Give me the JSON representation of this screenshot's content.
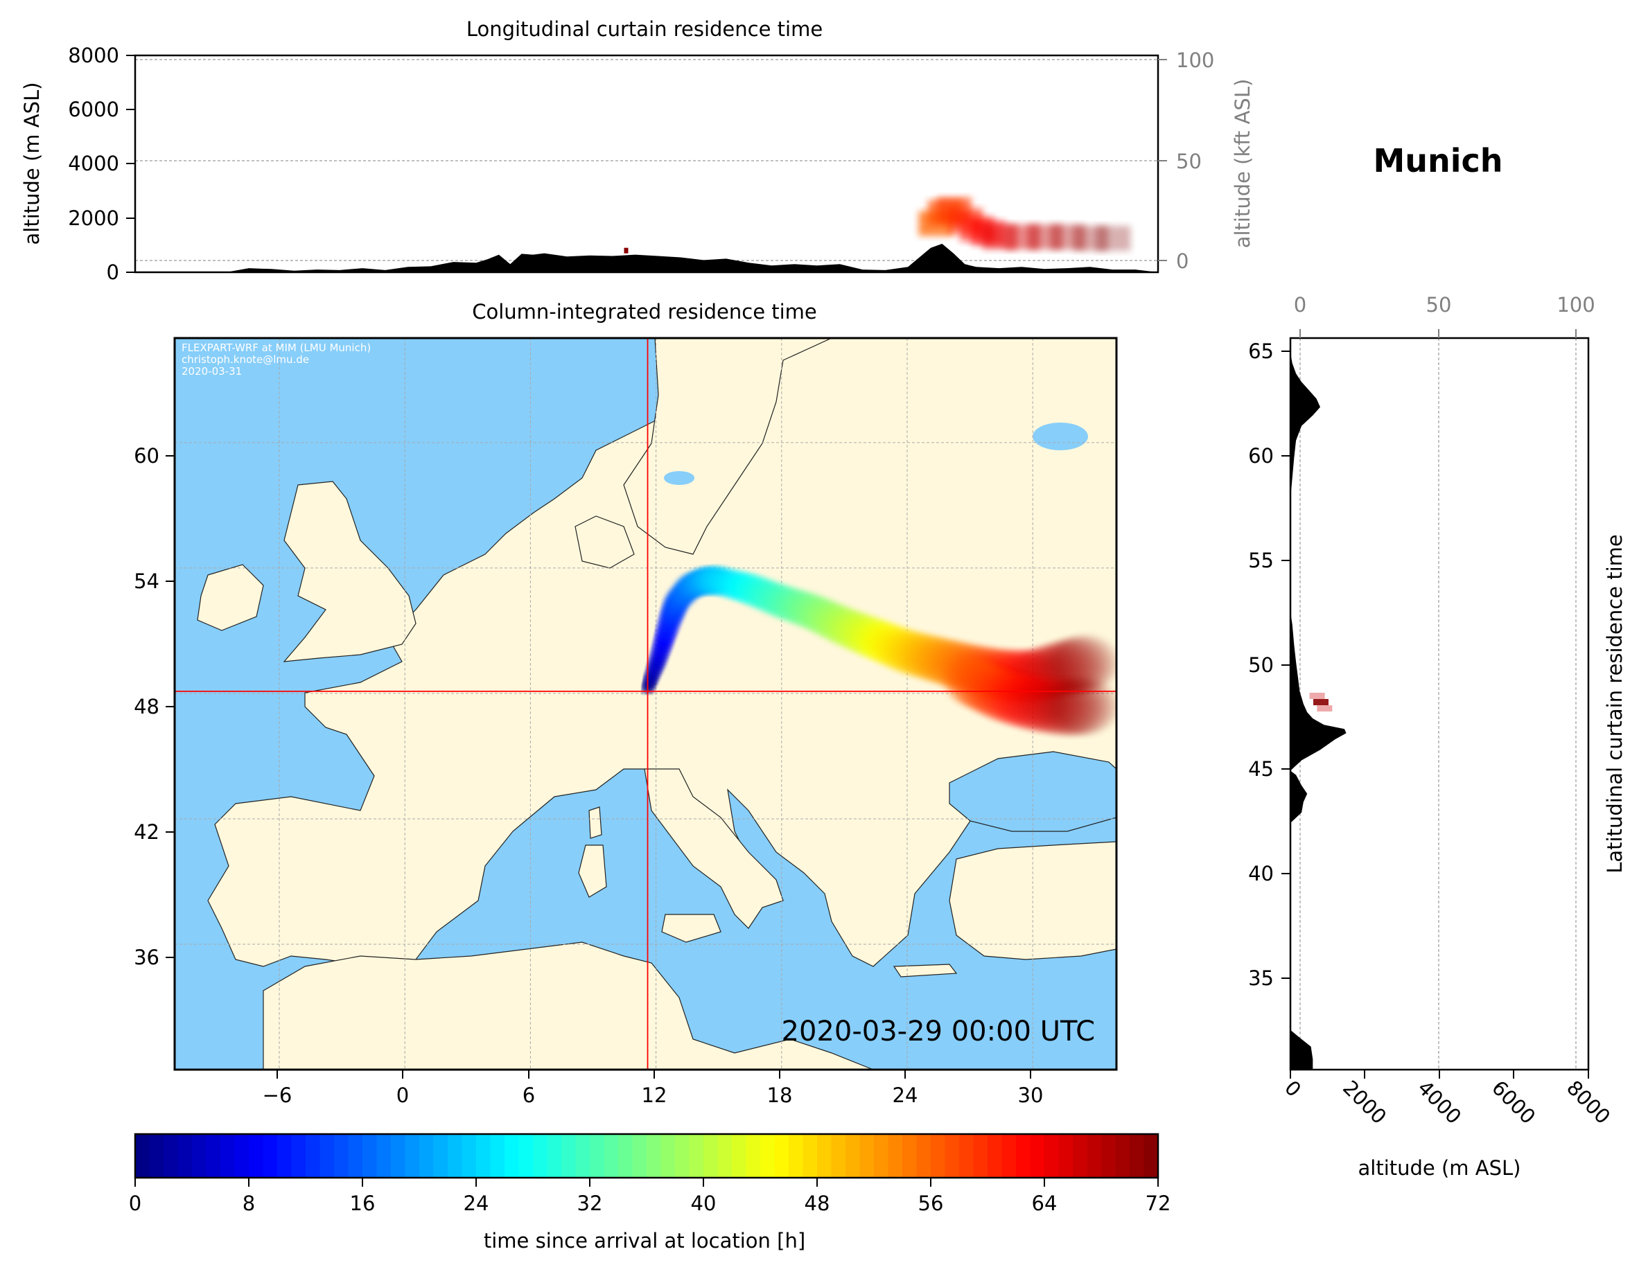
{
  "chart_data": [
    {
      "type": "area",
      "title": "Longitudinal curtain residence time",
      "ylabel": "altitude (m ASL)",
      "ylabel_right": "altitude (kft ASL)",
      "ylim": [
        0,
        8000
      ],
      "yticks": [
        "0",
        "2000",
        "4000",
        "6000",
        "8000"
      ],
      "yticks_right": [
        "0",
        "50",
        "100"
      ],
      "xlim": [
        -10,
        35
      ],
      "terrain_profile": {
        "x": [
          -10,
          -6,
          -5,
          -4,
          -3,
          -2,
          -1,
          0,
          1,
          2,
          3,
          4,
          5,
          5.5,
          6,
          6.5,
          7,
          7.5,
          8,
          9,
          10,
          11,
          12,
          13,
          14,
          15,
          16,
          17,
          18,
          19,
          20,
          21,
          22,
          23,
          24,
          24.5,
          25,
          25.5,
          26,
          26.5,
          27,
          28,
          29,
          30,
          31,
          32,
          33,
          34,
          35
        ],
        "y": [
          0,
          0,
          150,
          120,
          60,
          100,
          80,
          150,
          80,
          200,
          220,
          380,
          350,
          480,
          650,
          300,
          680,
          650,
          700,
          580,
          620,
          600,
          650,
          600,
          550,
          450,
          500,
          350,
          250,
          300,
          250,
          300,
          100,
          80,
          200,
          550,
          900,
          1050,
          700,
          300,
          200,
          150,
          200,
          120,
          150,
          200,
          100,
          100,
          0
        ]
      },
      "plume_altitude_m": {
        "x": [
          25.2,
          25.6,
          26,
          26.5,
          27,
          27.5,
          28,
          29,
          30,
          31,
          32,
          33
        ],
        "y": [
          1800,
          2200,
          2300,
          1900,
          1600,
          1450,
          1300,
          1300,
          1300,
          1300,
          1250,
          1250
        ]
      },
      "release_point": {
        "x": 11.6,
        "y": 800
      }
    },
    {
      "type": "heatmap",
      "title": "Column-integrated residence time",
      "credit_lines": [
        "FLEXPART-WRF at MIM (LMU Munich)",
        "christoph.knote@lmu.de",
        "2020-03-31"
      ],
      "timestamp": "2020-03-29 00:00 UTC",
      "xlim": [
        -11,
        34
      ],
      "ylim": [
        30,
        65
      ],
      "xticks": [
        "−6",
        "0",
        "6",
        "12",
        "18",
        "24",
        "30"
      ],
      "yticks": [
        "36",
        "42",
        "48",
        "54",
        "60"
      ],
      "location": {
        "name": "Munich",
        "lon": 11.6,
        "lat": 48.1
      },
      "trajectory": {
        "lon": [
          11.6,
          11.8,
          12.1,
          12.4,
          12.7,
          13.0,
          13.6,
          14.3,
          15.0,
          16.5,
          18.0,
          19.5,
          21.0,
          22.5,
          24.0,
          25.5,
          27.0,
          28.5,
          30.0,
          31.5,
          32.8
        ],
        "lat": [
          48.2,
          48.8,
          49.6,
          50.6,
          51.6,
          52.4,
          53.1,
          53.4,
          53.4,
          53.0,
          52.4,
          51.9,
          51.2,
          50.6,
          50.0,
          49.6,
          49.2,
          48.9,
          48.8,
          49.2,
          49.5
        ],
        "hours": [
          0,
          3,
          6,
          9,
          12,
          15,
          18,
          21,
          24,
          28,
          32,
          36,
          40,
          44,
          48,
          52,
          56,
          60,
          64,
          68,
          72
        ]
      },
      "trajectory_south_branch": {
        "lon": [
          27.0,
          28.5,
          30.0,
          31.5,
          32.8
        ],
        "lat": [
          48.6,
          47.9,
          47.5,
          47.3,
          47.4
        ],
        "hours": [
          56,
          60,
          64,
          68,
          72
        ]
      },
      "colors": {
        "ocean": "#87CEFA",
        "land": "#FFF8DC"
      }
    },
    {
      "type": "area",
      "title": "Latitudinal curtain residence time",
      "location_label": "Munich",
      "xlabel": "altitude (m ASL)",
      "xlim": [
        0,
        8000
      ],
      "xticks": [
        "0",
        "2000",
        "4000",
        "6000",
        "8000"
      ],
      "xticks_top": [
        "0",
        "50",
        "100"
      ],
      "ylim": [
        30.7,
        65.7
      ],
      "yticks": [
        "35",
        "40",
        "45",
        "50",
        "55",
        "60",
        "65"
      ],
      "terrain_profile": {
        "lat": [
          30.7,
          31.2,
          31.8,
          32.3,
          32.6,
          42.5,
          43.0,
          43.5,
          43.9,
          44.3,
          44.8,
          45.0,
          45.5,
          46.0,
          46.5,
          46.8,
          47.0,
          47.2,
          47.5,
          47.8,
          48.2,
          48.8,
          49.5,
          50.2,
          51.0,
          52.0,
          52.6,
          58.0,
          59.0,
          60.0,
          60.8,
          61.5,
          62.0,
          62.4,
          62.8,
          63.2,
          63.6,
          64.0,
          64.5,
          65.0,
          65.7
        ],
        "alt": [
          600,
          600,
          550,
          200,
          0,
          0,
          300,
          350,
          450,
          300,
          150,
          0,
          300,
          800,
          1200,
          1500,
          1450,
          900,
          600,
          450,
          350,
          250,
          200,
          150,
          100,
          50,
          0,
          0,
          50,
          100,
          150,
          300,
          600,
          800,
          700,
          500,
          300,
          150,
          50,
          0,
          0
        ]
      },
      "plume_points": [
        {
          "lat": 48.3,
          "alt": 800
        },
        {
          "lat": 48.6,
          "alt": 700
        },
        {
          "lat": 48.0,
          "alt": 900
        }
      ]
    },
    {
      "type": "colorbar",
      "label": "time since arrival at location [h]",
      "range": [
        0,
        72
      ],
      "ticks": [
        "0",
        "8",
        "16",
        "24",
        "32",
        "40",
        "48",
        "56",
        "64",
        "72"
      ]
    }
  ]
}
